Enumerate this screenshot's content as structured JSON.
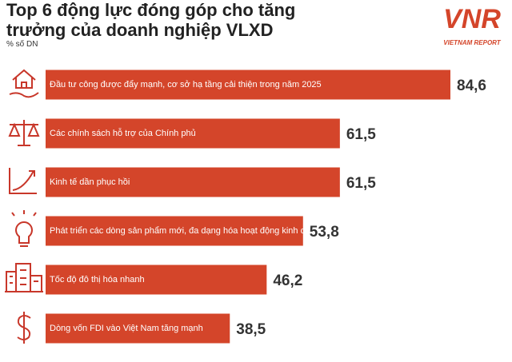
{
  "chart_data": {
    "type": "bar",
    "orientation": "horizontal",
    "title": "Top 6 động lực đóng góp cho tăng trưởng của doanh nghiệp VLXD",
    "subtitle": "% số DN",
    "logo": {
      "mark": "VNR",
      "text": "VIETNAM REPORT"
    },
    "categories": [
      "Đầu tư công được đẩy mạnh, cơ sở hạ tầng cải thiện trong năm 2025",
      "Các chính sách hỗ trợ của Chính phủ",
      "Kinh tế dần phục hồi",
      "Phát triển các dòng sản phẩm mới, đa dạng hóa hoạt động kinh doanh",
      "Tốc độ đô thị hóa nhanh",
      "Dòng vốn FDI vào Việt Nam tăng mạnh"
    ],
    "values": [
      84.6,
      61.5,
      61.5,
      53.8,
      46.2,
      38.5
    ],
    "value_labels": [
      "84,6",
      "61,5",
      "61,5",
      "53,8",
      "46,2",
      "38,5"
    ],
    "color": "#d4452a"
  }
}
